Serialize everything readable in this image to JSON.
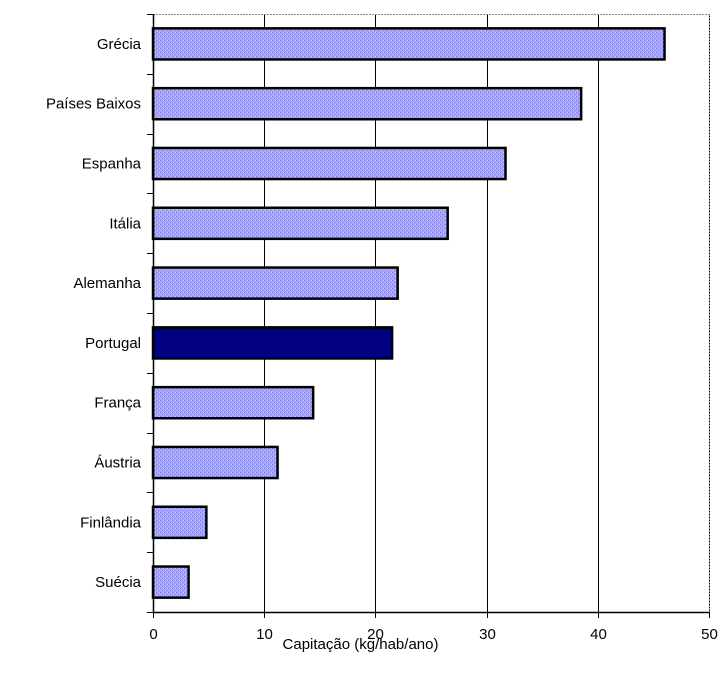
{
  "chart_data": {
    "type": "bar",
    "orientation": "horizontal",
    "title": "",
    "xlabel": "Capitação (kg/hab/ano)",
    "ylabel": "",
    "xlim": [
      0,
      50
    ],
    "xticks": [
      0,
      10,
      20,
      30,
      40,
      50
    ],
    "grid": "vertical",
    "categories": [
      "Grécia",
      "Países Baixos",
      "Espanha",
      "Itália",
      "Alemanha",
      "Portugal",
      "França",
      "Áustria",
      "Finlândia",
      "Suécia"
    ],
    "values": [
      46,
      38.5,
      31.7,
      26.5,
      22,
      21.5,
      14.4,
      11.2,
      4.8,
      3.2
    ],
    "highlight": "Portugal",
    "colors": {
      "bar_fill": "#a3a3f0",
      "bar_highlight": "#000080",
      "bar_stroke": "#000000",
      "grid": "#000000"
    }
  }
}
